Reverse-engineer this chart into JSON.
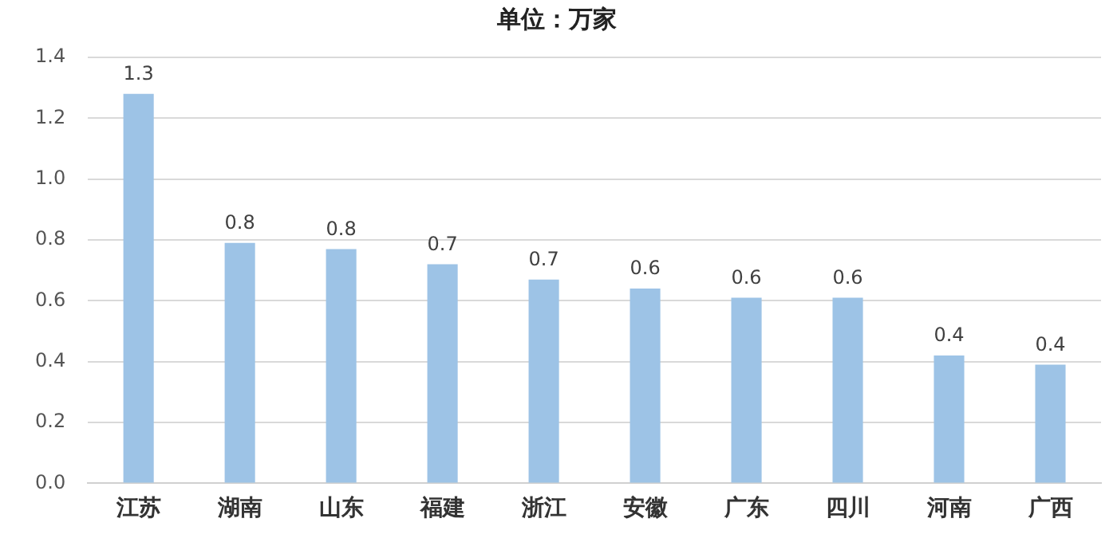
{
  "chart_data": {
    "type": "bar",
    "title": "单位：万家",
    "categories": [
      "江苏",
      "湖南",
      "山东",
      "福建",
      "浙江",
      "安徽",
      "广东",
      "四川",
      "河南",
      "广西"
    ],
    "values": [
      1.28,
      0.79,
      0.77,
      0.72,
      0.67,
      0.64,
      0.61,
      0.61,
      0.42,
      0.39
    ],
    "value_labels": [
      "1.3",
      "0.8",
      "0.8",
      "0.7",
      "0.7",
      "0.6",
      "0.6",
      "0.6",
      "0.4",
      "0.4"
    ],
    "color": "#9dc3e6",
    "ylim": [
      0,
      1.4
    ],
    "yticks": [
      "0.0",
      0.2,
      0.4,
      0.6,
      0.8,
      "1.0",
      1.2,
      1.4
    ],
    "grid": "y"
  }
}
